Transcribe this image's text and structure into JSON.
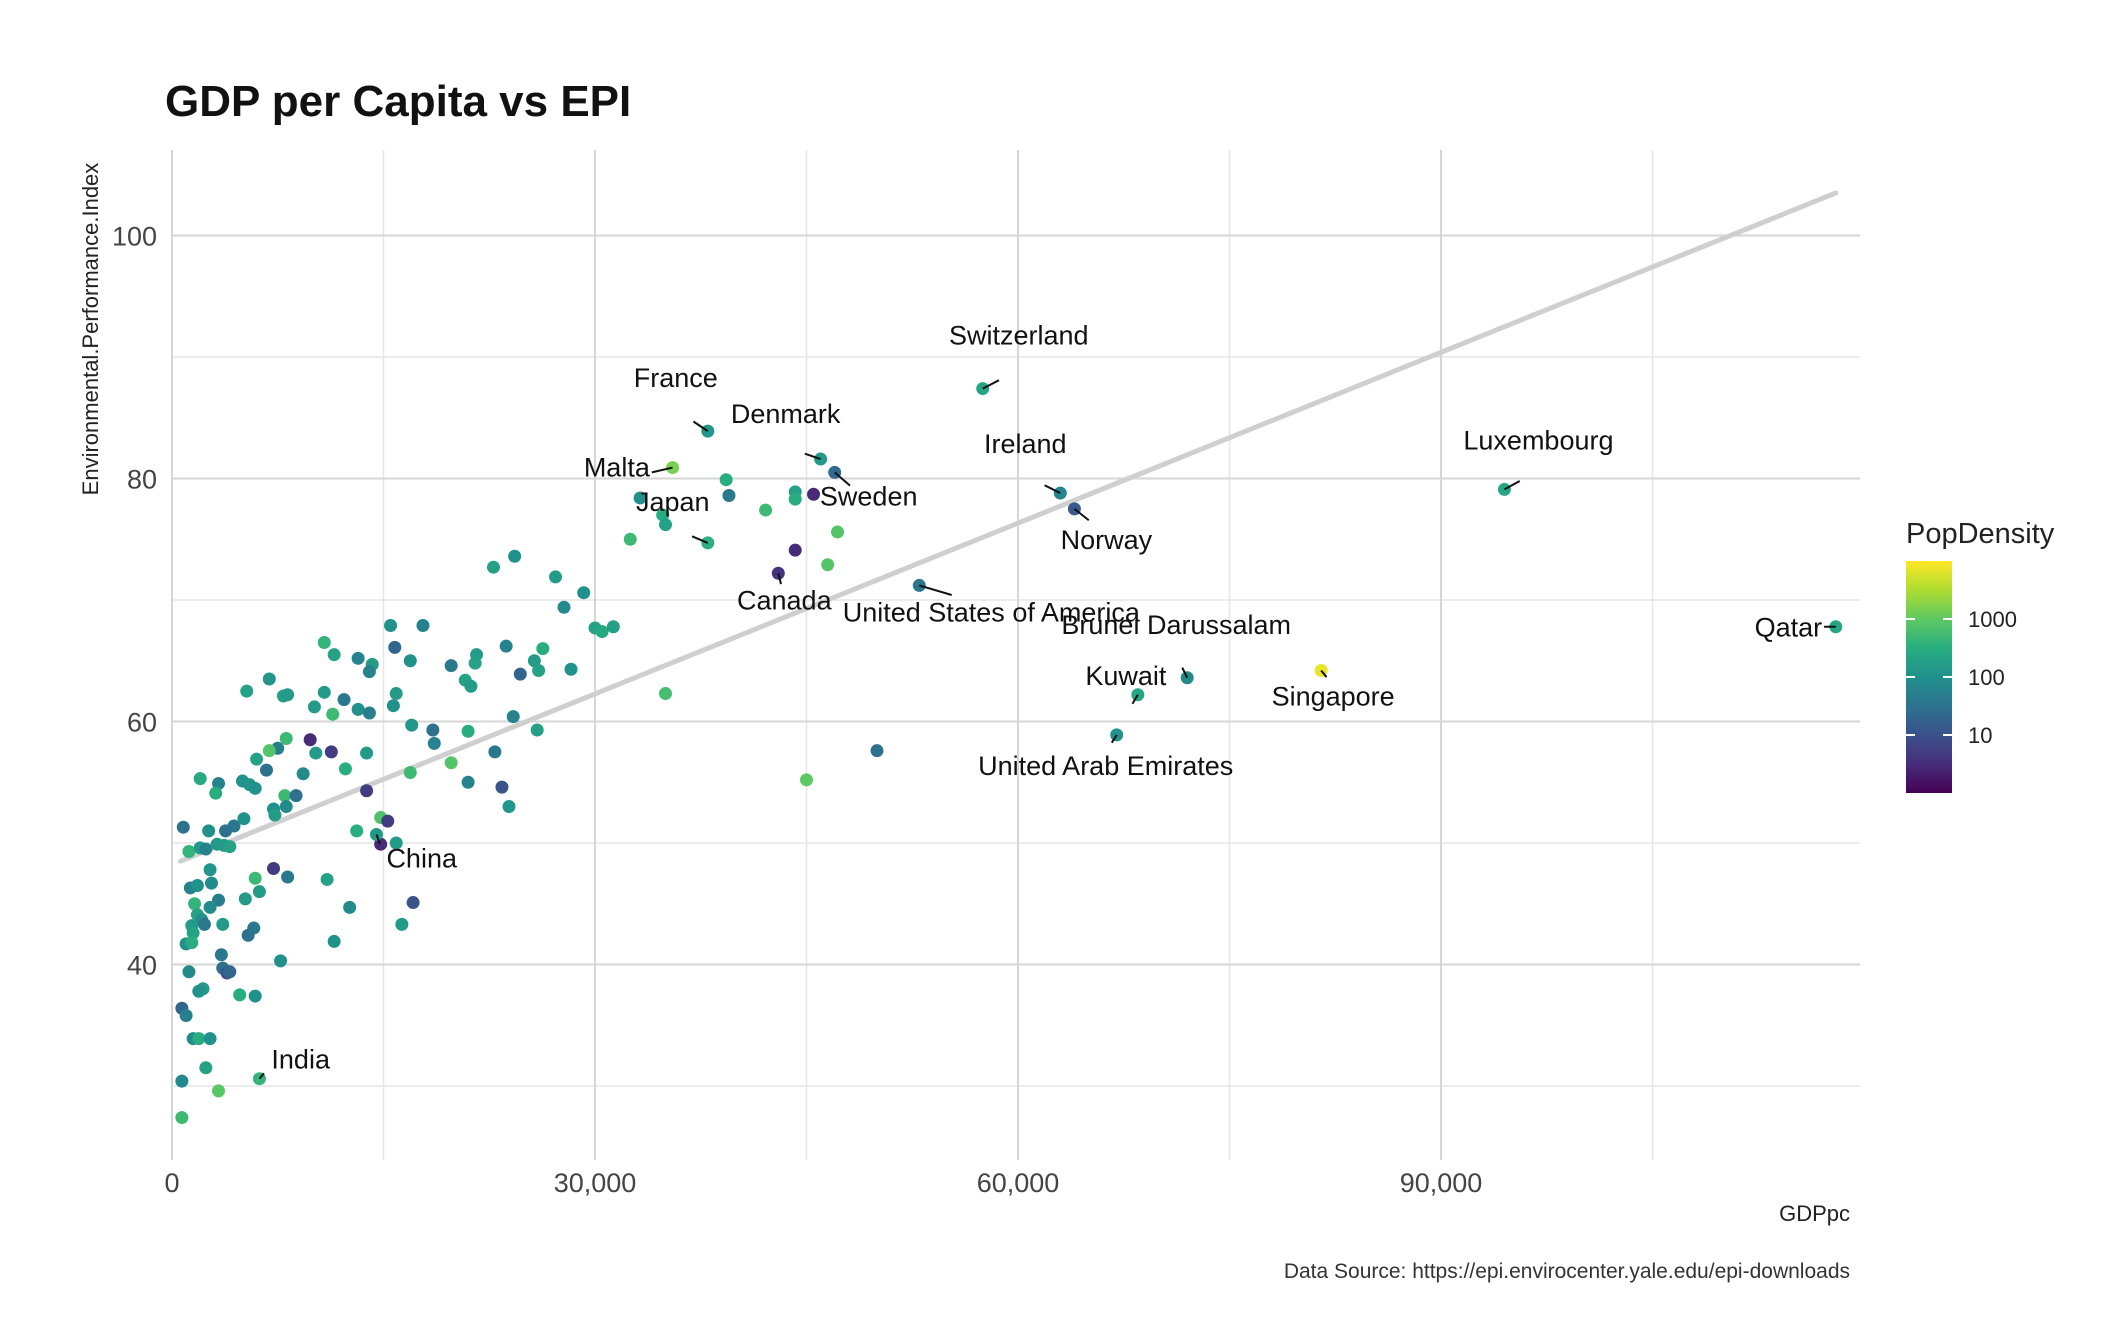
{
  "chart_data": {
    "type": "scatter",
    "title": "GDP per Capita vs EPI",
    "xlabel": "GDPpc",
    "ylabel": "Environmental.Performance.Index",
    "caption": "Data Source: https://epi.envirocenter.yale.edu/epi-downloads",
    "xlim": [
      0,
      119000
    ],
    "ylim": [
      24.8,
      107
    ],
    "x_ticks": [
      0,
      30000,
      60000,
      90000
    ],
    "x_tick_labels": [
      "0",
      "30,000",
      "60,000",
      "90,000"
    ],
    "x_minor": [
      15000,
      45000,
      75000,
      105000
    ],
    "y_ticks": [
      40,
      60,
      80,
      100
    ],
    "y_tick_labels": [
      "40",
      "60",
      "80",
      "100"
    ],
    "y_minor": [
      30,
      50,
      70,
      90
    ],
    "grid": true,
    "trend_line": {
      "x": [
        600,
        118000
      ],
      "y": [
        48.5,
        103.5
      ],
      "color": "#cccccc"
    },
    "legend": {
      "title": "PopDensity",
      "scale": "log10",
      "range": [
        1,
        10000
      ],
      "ticks": [
        10,
        100,
        1000
      ],
      "tick_labels": [
        "10",
        "100",
        "1000"
      ],
      "placement": "right"
    },
    "labeled_points": [
      {
        "name": "Switzerland",
        "x": 57500,
        "y": 87.4,
        "density": 210
      },
      {
        "name": "France",
        "x": 38000,
        "y": 83.9,
        "density": 120
      },
      {
        "name": "Denmark",
        "x": 46000,
        "y": 81.6,
        "density": 135
      },
      {
        "name": "Malta",
        "x": 35500,
        "y": 80.9,
        "density": 1500
      },
      {
        "name": "Sweden",
        "x": 47000,
        "y": 80.5,
        "density": 24
      },
      {
        "name": "Ireland",
        "x": 63000,
        "y": 78.8,
        "density": 70
      },
      {
        "name": "Luxembourg",
        "x": 94500,
        "y": 79.1,
        "density": 240
      },
      {
        "name": "Norway",
        "x": 64000,
        "y": 77.5,
        "density": 14
      },
      {
        "name": "Japan",
        "x": 38000,
        "y": 74.7,
        "density": 340
      },
      {
        "name": "Canada",
        "x": 43000,
        "y": 72.2,
        "density": 4
      },
      {
        "name": "United States of America",
        "x": 53000,
        "y": 71.2,
        "density": 35
      },
      {
        "name": "Qatar",
        "x": 118000,
        "y": 67.8,
        "density": 230
      },
      {
        "name": "Brunei Darussalam",
        "x": 72000,
        "y": 63.6,
        "density": 75
      },
      {
        "name": "Singapore",
        "x": 81500,
        "y": 64.2,
        "density": 7800
      },
      {
        "name": "Kuwait",
        "x": 68500,
        "y": 62.2,
        "density": 230
      },
      {
        "name": "United Arab Emirates",
        "x": 67000,
        "y": 58.9,
        "density": 110
      },
      {
        "name": "China",
        "x": 14500,
        "y": 50.7,
        "density": 145
      },
      {
        "name": "India",
        "x": 6200,
        "y": 30.6,
        "density": 410
      }
    ],
    "points": [
      {
        "x": 45500,
        "y": 78.7,
        "density": 3
      },
      {
        "x": 44200,
        "y": 78.9,
        "density": 200
      },
      {
        "x": 44200,
        "y": 78.3,
        "density": 300
      },
      {
        "x": 39300,
        "y": 79.9,
        "density": 300
      },
      {
        "x": 39500,
        "y": 78.6,
        "density": 40
      },
      {
        "x": 33200,
        "y": 78.4,
        "density": 100
      },
      {
        "x": 42100,
        "y": 77.4,
        "density": 500
      },
      {
        "x": 34800,
        "y": 77.0,
        "density": 300
      },
      {
        "x": 35000,
        "y": 76.2,
        "density": 200
      },
      {
        "x": 47200,
        "y": 75.6,
        "density": 800
      },
      {
        "x": 32500,
        "y": 75.0,
        "density": 500
      },
      {
        "x": 44200,
        "y": 74.1,
        "density": 3
      },
      {
        "x": 46500,
        "y": 72.9,
        "density": 800
      },
      {
        "x": 24300,
        "y": 73.6,
        "density": 100
      },
      {
        "x": 22800,
        "y": 72.7,
        "density": 200
      },
      {
        "x": 27200,
        "y": 71.9,
        "density": 150
      },
      {
        "x": 29200,
        "y": 70.6,
        "density": 100
      },
      {
        "x": 27800,
        "y": 69.4,
        "density": 80
      },
      {
        "x": 30000,
        "y": 67.7,
        "density": 200
      },
      {
        "x": 30500,
        "y": 67.4,
        "density": 250
      },
      {
        "x": 31300,
        "y": 67.8,
        "density": 180
      },
      {
        "x": 17800,
        "y": 67.9,
        "density": 60
      },
      {
        "x": 15500,
        "y": 67.9,
        "density": 100
      },
      {
        "x": 10800,
        "y": 66.5,
        "density": 400
      },
      {
        "x": 11500,
        "y": 65.5,
        "density": 200
      },
      {
        "x": 15800,
        "y": 66.1,
        "density": 20
      },
      {
        "x": 16900,
        "y": 65.0,
        "density": 100
      },
      {
        "x": 26300,
        "y": 66.0,
        "density": 300
      },
      {
        "x": 23700,
        "y": 66.2,
        "density": 60
      },
      {
        "x": 21600,
        "y": 65.5,
        "density": 150
      },
      {
        "x": 21500,
        "y": 64.8,
        "density": 200
      },
      {
        "x": 19800,
        "y": 64.6,
        "density": 40
      },
      {
        "x": 25700,
        "y": 65.0,
        "density": 150
      },
      {
        "x": 26000,
        "y": 64.2,
        "density": 200
      },
      {
        "x": 24700,
        "y": 63.9,
        "density": 20
      },
      {
        "x": 28300,
        "y": 64.3,
        "density": 100
      },
      {
        "x": 14200,
        "y": 64.7,
        "density": 150
      },
      {
        "x": 14000,
        "y": 64.1,
        "density": 60
      },
      {
        "x": 13200,
        "y": 65.2,
        "density": 60
      },
      {
        "x": 6900,
        "y": 63.5,
        "density": 120
      },
      {
        "x": 20800,
        "y": 63.4,
        "density": 200
      },
      {
        "x": 21200,
        "y": 62.9,
        "density": 150
      },
      {
        "x": 5300,
        "y": 62.5,
        "density": 200
      },
      {
        "x": 10800,
        "y": 62.4,
        "density": 150
      },
      {
        "x": 7900,
        "y": 62.1,
        "density": 200
      },
      {
        "x": 8200,
        "y": 62.2,
        "density": 150
      },
      {
        "x": 12200,
        "y": 61.8,
        "density": 40
      },
      {
        "x": 15900,
        "y": 62.3,
        "density": 150
      },
      {
        "x": 15700,
        "y": 61.3,
        "density": 100
      },
      {
        "x": 10100,
        "y": 61.2,
        "density": 150
      },
      {
        "x": 11400,
        "y": 60.6,
        "density": 500
      },
      {
        "x": 13200,
        "y": 61.0,
        "density": 100
      },
      {
        "x": 14000,
        "y": 60.7,
        "density": 50
      },
      {
        "x": 17000,
        "y": 59.7,
        "density": 120
      },
      {
        "x": 18500,
        "y": 59.3,
        "density": 30
      },
      {
        "x": 24200,
        "y": 60.4,
        "density": 60
      },
      {
        "x": 21000,
        "y": 59.2,
        "density": 300
      },
      {
        "x": 25900,
        "y": 59.3,
        "density": 180
      },
      {
        "x": 35000,
        "y": 62.3,
        "density": 600
      },
      {
        "x": 18600,
        "y": 58.2,
        "density": 60
      },
      {
        "x": 9800,
        "y": 58.5,
        "density": 3
      },
      {
        "x": 10200,
        "y": 57.4,
        "density": 150
      },
      {
        "x": 11300,
        "y": 57.5,
        "density": 5
      },
      {
        "x": 8100,
        "y": 58.6,
        "density": 500
      },
      {
        "x": 7500,
        "y": 57.8,
        "density": 50
      },
      {
        "x": 6900,
        "y": 57.6,
        "density": 800
      },
      {
        "x": 6000,
        "y": 56.9,
        "density": 200
      },
      {
        "x": 6700,
        "y": 56.0,
        "density": 30
      },
      {
        "x": 9300,
        "y": 55.7,
        "density": 80
      },
      {
        "x": 12300,
        "y": 56.1,
        "density": 300
      },
      {
        "x": 13800,
        "y": 57.4,
        "density": 150
      },
      {
        "x": 16900,
        "y": 55.8,
        "density": 500
      },
      {
        "x": 19800,
        "y": 56.6,
        "density": 800
      },
      {
        "x": 22900,
        "y": 57.5,
        "density": 40
      },
      {
        "x": 21000,
        "y": 55.0,
        "density": 60
      },
      {
        "x": 23400,
        "y": 54.6,
        "density": 10
      },
      {
        "x": 23900,
        "y": 53.0,
        "density": 120
      },
      {
        "x": 5000,
        "y": 55.1,
        "density": 100
      },
      {
        "x": 5500,
        "y": 54.8,
        "density": 120
      },
      {
        "x": 5900,
        "y": 54.5,
        "density": 100
      },
      {
        "x": 3300,
        "y": 54.9,
        "density": 60
      },
      {
        "x": 3100,
        "y": 54.1,
        "density": 300
      },
      {
        "x": 2000,
        "y": 55.3,
        "density": 250
      },
      {
        "x": 8000,
        "y": 53.9,
        "density": 500
      },
      {
        "x": 8800,
        "y": 53.9,
        "density": 30
      },
      {
        "x": 8100,
        "y": 53.0,
        "density": 80
      },
      {
        "x": 7200,
        "y": 52.8,
        "density": 100
      },
      {
        "x": 7300,
        "y": 52.3,
        "density": 150
      },
      {
        "x": 13800,
        "y": 54.3,
        "density": 5
      },
      {
        "x": 14800,
        "y": 52.1,
        "density": 700
      },
      {
        "x": 15300,
        "y": 51.8,
        "density": 5
      },
      {
        "x": 4400,
        "y": 51.4,
        "density": 40
      },
      {
        "x": 5100,
        "y": 52.0,
        "density": 100
      },
      {
        "x": 3800,
        "y": 51.0,
        "density": 30
      },
      {
        "x": 2600,
        "y": 51.0,
        "density": 100
      },
      {
        "x": 800,
        "y": 51.3,
        "density": 30
      },
      {
        "x": 13100,
        "y": 51.0,
        "density": 300
      },
      {
        "x": 14800,
        "y": 49.9,
        "density": 3
      },
      {
        "x": 15900,
        "y": 50.0,
        "density": 150
      },
      {
        "x": 1200,
        "y": 49.3,
        "density": 400
      },
      {
        "x": 2000,
        "y": 49.6,
        "density": 150
      },
      {
        "x": 2400,
        "y": 49.5,
        "density": 60
      },
      {
        "x": 3200,
        "y": 49.9,
        "density": 150
      },
      {
        "x": 3700,
        "y": 49.8,
        "density": 150
      },
      {
        "x": 4100,
        "y": 49.7,
        "density": 200
      },
      {
        "x": 7200,
        "y": 47.9,
        "density": 5
      },
      {
        "x": 8200,
        "y": 47.2,
        "density": 40
      },
      {
        "x": 11000,
        "y": 47.0,
        "density": 200
      },
      {
        "x": 5900,
        "y": 47.1,
        "density": 500
      },
      {
        "x": 6200,
        "y": 46.0,
        "density": 150
      },
      {
        "x": 5200,
        "y": 45.4,
        "density": 150
      },
      {
        "x": 2700,
        "y": 47.8,
        "density": 120
      },
      {
        "x": 2800,
        "y": 46.7,
        "density": 80
      },
      {
        "x": 1300,
        "y": 46.3,
        "density": 60
      },
      {
        "x": 1800,
        "y": 46.5,
        "density": 100
      },
      {
        "x": 3300,
        "y": 45.3,
        "density": 50
      },
      {
        "x": 2700,
        "y": 44.7,
        "density": 80
      },
      {
        "x": 1600,
        "y": 45.0,
        "density": 400
      },
      {
        "x": 1800,
        "y": 44.1,
        "density": 200
      },
      {
        "x": 2100,
        "y": 43.7,
        "density": 100
      },
      {
        "x": 2300,
        "y": 43.3,
        "density": 40
      },
      {
        "x": 1400,
        "y": 43.2,
        "density": 150
      },
      {
        "x": 1500,
        "y": 42.6,
        "density": 200
      },
      {
        "x": 3600,
        "y": 43.3,
        "density": 150
      },
      {
        "x": 5800,
        "y": 43.0,
        "density": 40
      },
      {
        "x": 5400,
        "y": 42.4,
        "density": 30
      },
      {
        "x": 12600,
        "y": 44.7,
        "density": 80
      },
      {
        "x": 16300,
        "y": 43.3,
        "density": 150
      },
      {
        "x": 17100,
        "y": 45.1,
        "density": 10
      },
      {
        "x": 11500,
        "y": 41.9,
        "density": 100
      },
      {
        "x": 1000,
        "y": 41.7,
        "density": 100
      },
      {
        "x": 1400,
        "y": 41.8,
        "density": 300
      },
      {
        "x": 3500,
        "y": 40.8,
        "density": 40
      },
      {
        "x": 7700,
        "y": 40.3,
        "density": 100
      },
      {
        "x": 3600,
        "y": 39.7,
        "density": 30
      },
      {
        "x": 3900,
        "y": 39.3,
        "density": 10
      },
      {
        "x": 4100,
        "y": 39.4,
        "density": 20
      },
      {
        "x": 1200,
        "y": 39.4,
        "density": 80
      },
      {
        "x": 2200,
        "y": 38.0,
        "density": 150
      },
      {
        "x": 1900,
        "y": 37.8,
        "density": 100
      },
      {
        "x": 4800,
        "y": 37.5,
        "density": 300
      },
      {
        "x": 5900,
        "y": 37.4,
        "density": 100
      },
      {
        "x": 700,
        "y": 36.4,
        "density": 20
      },
      {
        "x": 1000,
        "y": 35.8,
        "density": 50
      },
      {
        "x": 1500,
        "y": 33.9,
        "density": 80
      },
      {
        "x": 1900,
        "y": 33.9,
        "density": 300
      },
      {
        "x": 2700,
        "y": 33.9,
        "density": 100
      },
      {
        "x": 2400,
        "y": 31.5,
        "density": 200
      },
      {
        "x": 700,
        "y": 30.4,
        "density": 80
      },
      {
        "x": 3300,
        "y": 29.6,
        "density": 900
      },
      {
        "x": 700,
        "y": 27.4,
        "density": 500
      },
      {
        "x": 45000,
        "y": 55.2,
        "density": 1000
      },
      {
        "x": 50000,
        "y": 57.6,
        "density": 30
      }
    ]
  }
}
